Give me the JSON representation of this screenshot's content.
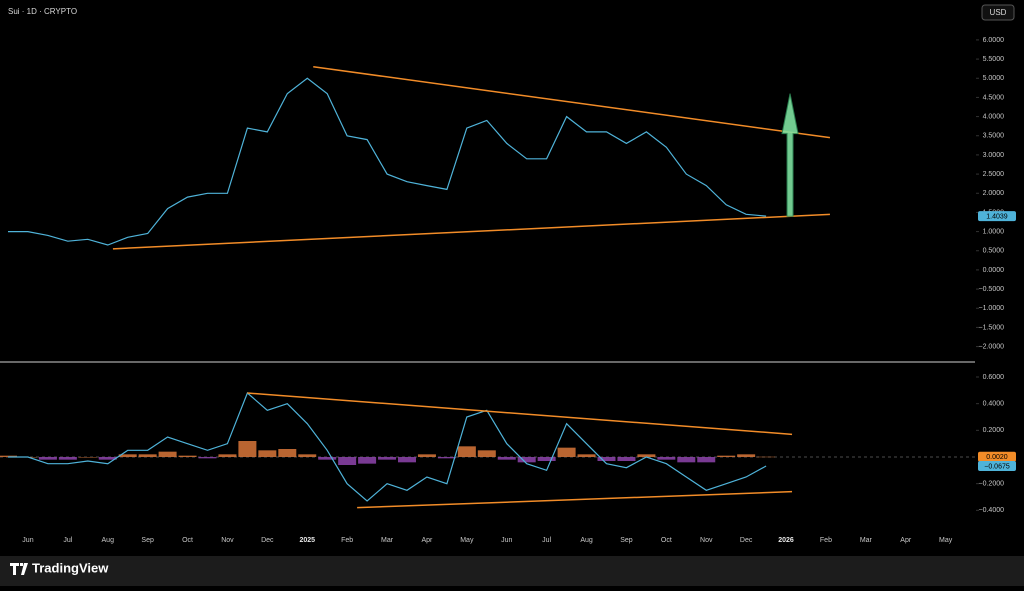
{
  "header": {
    "symbol": "Sui · 1D · CRYPTO",
    "currency": "USD"
  },
  "footer": {
    "brand": "TradingView"
  },
  "chart_data": [
    {
      "type": "line",
      "categories": [
        null,
        "Jun",
        null,
        "Jul",
        null,
        "Aug",
        null,
        "Sep",
        null,
        "Oct",
        null,
        "Nov",
        null,
        "Dec",
        null,
        "2025",
        null,
        "Feb",
        null,
        "Mar",
        null,
        "Apr",
        null,
        "May",
        null,
        "Jun",
        null,
        "Jul",
        null,
        "Aug",
        null,
        "Sep",
        null,
        "Oct",
        null,
        "Nov",
        null,
        "Dec",
        null,
        "2026",
        null,
        "Feb",
        null,
        "Mar",
        null,
        "Apr",
        null,
        "May"
      ],
      "values": [
        1.0,
        1.0,
        0.9,
        0.75,
        0.8,
        0.65,
        0.85,
        0.95,
        1.6,
        1.9,
        2.0,
        2.0,
        3.7,
        3.6,
        4.6,
        5.0,
        4.6,
        3.5,
        3.4,
        2.5,
        2.3,
        2.2,
        2.1,
        3.7,
        3.9,
        3.3,
        2.9,
        2.9,
        4.0,
        3.6,
        3.6,
        3.3,
        3.6,
        3.2,
        2.5,
        2.2,
        1.7,
        1.45,
        1.4039,
        null,
        null,
        null,
        null,
        null,
        null,
        null,
        null,
        null
      ],
      "color": "#4fb3d9",
      "ylim": [
        -2.35,
        6.65
      ],
      "yticks": [
        {
          "value": 6,
          "label": "6.0000"
        },
        {
          "value": 5.5,
          "label": "5.5000"
        },
        {
          "value": 5,
          "label": "5.0000"
        },
        {
          "value": 4.5,
          "label": "4.5000"
        },
        {
          "value": 4,
          "label": "4.0000"
        },
        {
          "value": 3.5,
          "label": "3.5000"
        },
        {
          "value": 3,
          "label": "3.0000"
        },
        {
          "value": 2.5,
          "label": "2.5000"
        },
        {
          "value": 2,
          "label": "2.0000"
        },
        {
          "value": 1.5,
          "label": "1.5000"
        },
        {
          "value": 1,
          "label": "1.0000"
        },
        {
          "value": 0.5,
          "label": "0.5000"
        },
        {
          "value": 0,
          "label": "0.0000"
        },
        {
          "value": -0.5,
          "label": "−0.5000"
        },
        {
          "value": -1,
          "label": "−1.0000"
        },
        {
          "value": -1.5,
          "label": "−1.5000"
        },
        {
          "value": -2,
          "label": "−2.0000"
        }
      ],
      "trendline_color": "#f28c28",
      "trendlines": [
        {
          "x": [
            15.3,
            41.2
          ],
          "values": [
            5.3,
            3.45
          ]
        },
        {
          "x": [
            5.26,
            41.2
          ],
          "values": [
            0.55,
            1.45
          ]
        }
      ],
      "arrow": {
        "x": 39.2,
        "values": [
          1.4,
          4.6
        ],
        "color": "#7fe0a0"
      }
    },
    {
      "type": "line",
      "values": [
        0.0,
        0.0,
        -0.05,
        -0.05,
        -0.03,
        -0.05,
        0.05,
        0.05,
        0.15,
        0.1,
        0.05,
        0.1,
        0.48,
        0.35,
        0.4,
        0.25,
        0.05,
        -0.2,
        -0.33,
        -0.2,
        -0.25,
        -0.15,
        -0.2,
        0.3,
        0.35,
        0.1,
        -0.05,
        -0.1,
        0.25,
        0.1,
        -0.05,
        -0.08,
        0.0,
        -0.05,
        -0.15,
        -0.25,
        -0.2,
        -0.15,
        -0.0675,
        null,
        null,
        null,
        null,
        null,
        null,
        null,
        null,
        null
      ],
      "color": "#4fb3d9",
      "histogram": [
        0.01,
        0.0,
        -0.02,
        -0.02,
        0.0,
        -0.02,
        0.02,
        0.02,
        0.04,
        0.01,
        -0.01,
        0.02,
        0.12,
        0.05,
        0.06,
        0.02,
        -0.02,
        -0.06,
        -0.05,
        -0.02,
        -0.04,
        0.02,
        -0.01,
        0.08,
        0.05,
        -0.02,
        -0.04,
        -0.03,
        0.07,
        0.02,
        -0.03,
        -0.03,
        0.02,
        -0.02,
        -0.04,
        -0.04,
        0.01,
        0.02,
        0.002,
        null,
        null,
        null,
        null,
        null,
        null,
        null,
        null,
        null
      ],
      "histogram_colors": {
        "positive": "#d9773a",
        "negative": "#8e44ad"
      },
      "histogram_last_label": "0.0020",
      "last_value_label": "−0.0675",
      "ylim": [
        -0.66,
        0.69
      ],
      "yticks": [
        {
          "value": 0.6,
          "label": "0.6000"
        },
        {
          "value": 0.4,
          "label": "0.4000"
        },
        {
          "value": 0.2,
          "label": "0.2000"
        },
        {
          "value": -0.2,
          "label": "−0.2000"
        },
        {
          "value": -0.4,
          "label": "−0.4000"
        }
      ],
      "trendline_color": "#f28c28",
      "trendlines": [
        {
          "x": [
            12.0,
            39.3
          ],
          "values": [
            0.48,
            0.17
          ]
        },
        {
          "x": [
            17.5,
            39.3
          ],
          "values": [
            -0.38,
            -0.26
          ]
        }
      ]
    }
  ]
}
